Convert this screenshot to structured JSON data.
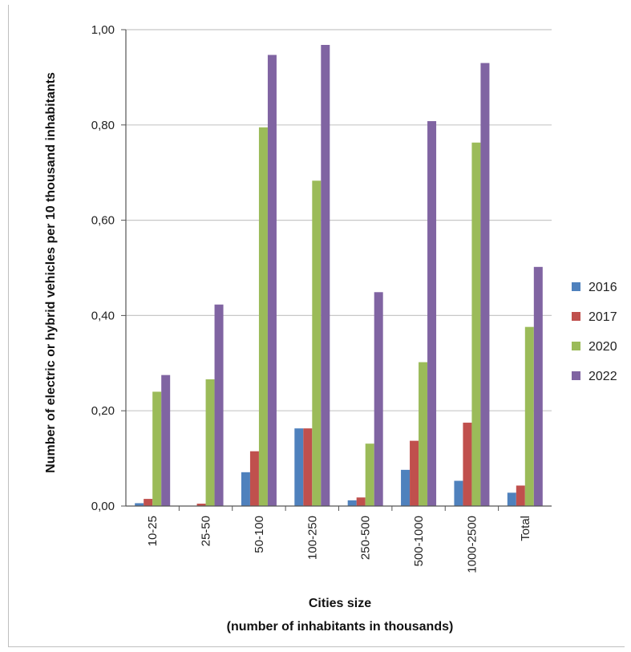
{
  "chart_data": {
    "type": "bar",
    "title": "",
    "ylabel": "Number of electric or hybrid vehicles per 10 thousand inhabitants",
    "xlabel_line1": "Cities  size",
    "xlabel_line2": "(number of inhabitants in thousands)",
    "ylim": [
      0,
      1.0
    ],
    "yticks": [
      "0,00",
      "0,20",
      "0,40",
      "0,60",
      "0,80",
      "1,00"
    ],
    "ytick_values": [
      0,
      0.2,
      0.4,
      0.6,
      0.8,
      1.0
    ],
    "categories": [
      "10-25",
      "25-50",
      "50-100",
      "100-250",
      "250-500",
      "500-1000",
      "1000-2500",
      "Total"
    ],
    "grid": true,
    "legend_position": "right",
    "series": [
      {
        "name": "2016",
        "color": "#4f81bd",
        "values": [
          0.006,
          0.0,
          0.071,
          0.163,
          0.012,
          0.076,
          0.053,
          0.028
        ]
      },
      {
        "name": "2017",
        "color": "#c0504d",
        "values": [
          0.015,
          0.005,
          0.115,
          0.163,
          0.018,
          0.137,
          0.175,
          0.043
        ]
      },
      {
        "name": "2020",
        "color": "#9bbb59",
        "values": [
          0.24,
          0.266,
          0.795,
          0.683,
          0.131,
          0.302,
          0.763,
          0.376
        ]
      },
      {
        "name": "2022",
        "color": "#8064a2",
        "values": [
          0.275,
          0.423,
          0.947,
          0.968,
          0.449,
          0.808,
          0.93,
          0.502
        ]
      }
    ]
  }
}
